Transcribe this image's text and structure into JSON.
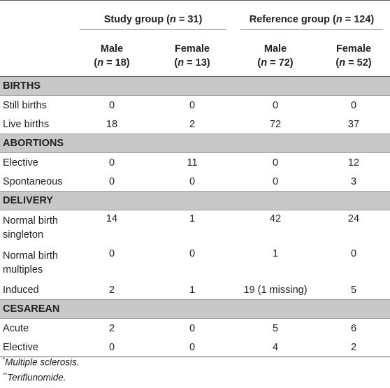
{
  "header": {
    "study_group": "Study group (n = 31)",
    "reference_group": "Reference group (n = 124)",
    "cols": [
      {
        "sex": "Male",
        "n": "(n = 18)"
      },
      {
        "sex": "Female",
        "n": "(n = 13)"
      },
      {
        "sex": "Male",
        "n": "(n = 72)"
      },
      {
        "sex": "Female",
        "n": "(n = 52)"
      }
    ]
  },
  "sections": [
    {
      "title": "BIRTHS",
      "rows": [
        {
          "label": "Still births",
          "values": [
            "0",
            "0",
            "0",
            "0"
          ]
        },
        {
          "label": "Live births",
          "values": [
            "18",
            "2",
            "72",
            "37"
          ]
        }
      ]
    },
    {
      "title": "ABORTIONS",
      "rows": [
        {
          "label": "Elective",
          "values": [
            "0",
            "11",
            "0",
            "12"
          ]
        },
        {
          "label": "Spontaneous",
          "values": [
            "0",
            "0",
            "0",
            "3"
          ]
        }
      ]
    },
    {
      "title": "DELIVERY",
      "rows": [
        {
          "label": "Normal birth singleton",
          "values": [
            "14",
            "1",
            "42",
            "24"
          ]
        },
        {
          "label": "Normal birth multiples",
          "values": [
            "0",
            "0",
            "1",
            "0"
          ]
        },
        {
          "label": "Induced",
          "values": [
            "2",
            "1",
            "19 (1 missing)",
            "5"
          ]
        }
      ]
    },
    {
      "title": "CESAREAN",
      "rows": [
        {
          "label": "Acute",
          "values": [
            "2",
            "0",
            "5",
            "6"
          ]
        },
        {
          "label": "Elective",
          "values": [
            "0",
            "0",
            "4",
            "2"
          ]
        }
      ]
    }
  ],
  "footnotes": [
    {
      "mark": "*",
      "text": "Multiple sclerosis."
    },
    {
      "mark": "**",
      "text": "Teriflunomide."
    }
  ]
}
